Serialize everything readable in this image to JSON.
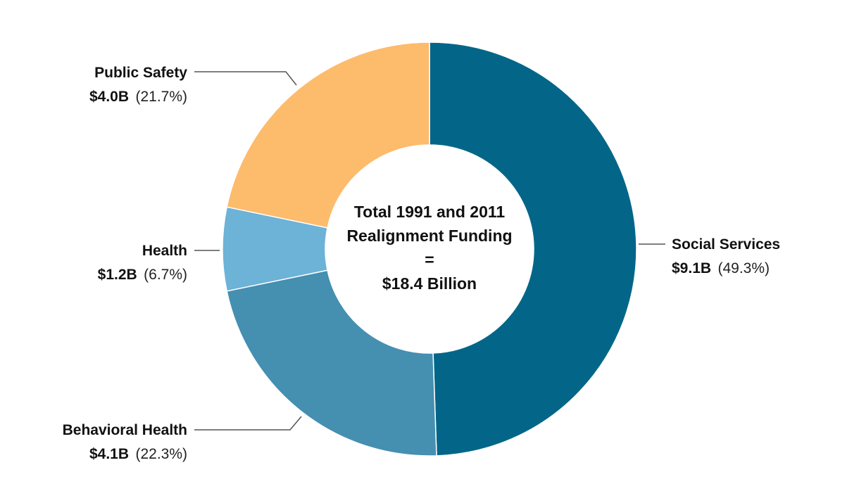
{
  "chart_data": {
    "type": "pie",
    "donut": true,
    "center_label": {
      "lines": [
        "Total 1991 and 2011",
        "Realignment Funding",
        "=",
        "$18.4 Billion"
      ]
    },
    "slices": [
      {
        "name": "Social Services",
        "value": 9.1,
        "value_label": "$9.1B",
        "percent": 49.3,
        "percent_label": "(49.3%)",
        "color": "#036688"
      },
      {
        "name": "Behavioral Health",
        "value": 4.1,
        "value_label": "$4.1B",
        "percent": 22.3,
        "percent_label": "(22.3%)",
        "color": "#458fb1"
      },
      {
        "name": "Health",
        "value": 1.2,
        "value_label": "$1.2B",
        "percent": 6.7,
        "percent_label": "(6.7%)",
        "color": "#6db2d7"
      },
      {
        "name": "Public Safety",
        "value": 4.0,
        "value_label": "$4.0B",
        "percent": 21.7,
        "percent_label": "(21.7%)",
        "color": "#fdbb6c"
      }
    ]
  }
}
